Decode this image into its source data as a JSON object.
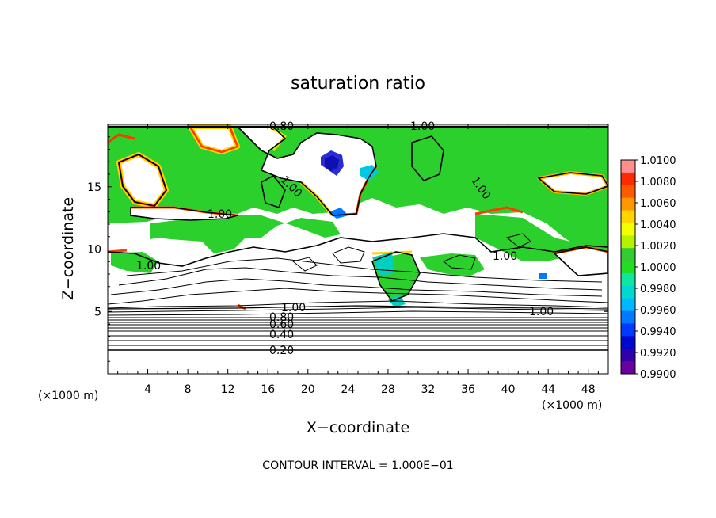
{
  "chart_data": {
    "type": "heatmap",
    "title": "saturation ratio",
    "xlabel": "X−coordinate",
    "ylabel": "Z−coordinate",
    "x_unit": "(×1000 m)",
    "z_unit": "(×1000 m)",
    "xlim": [
      0,
      50
    ],
    "ylim": [
      0,
      20
    ],
    "x_ticks": [
      4,
      8,
      12,
      16,
      20,
      24,
      28,
      32,
      36,
      40,
      44,
      48
    ],
    "y_ticks": [
      5,
      10,
      15
    ],
    "colorbar": {
      "ticks": [
        "1.0100",
        "1.0080",
        "1.0060",
        "1.0040",
        "1.0020",
        "1.0000",
        "0.9980",
        "0.9960",
        "0.9940",
        "0.9920",
        "0.9900"
      ],
      "colors": [
        "#ff8f8f",
        "#ff2a00",
        "#ff5a00",
        "#ff9800",
        "#ffd400",
        "#f2ff00",
        "#b6f200",
        "#33cc33",
        "#22dd22",
        "#11e6a0",
        "#00d8d0",
        "#00b8ff",
        "#0078ff",
        "#0038ff",
        "#0008d0",
        "#3000a8",
        "#6a00a0"
      ]
    },
    "contour_levels_shown": [
      {
        "label": "0.20",
        "z": 2.0
      },
      {
        "label": "0.40",
        "z": 3.3
      },
      {
        "label": "0.60",
        "z": 4.1
      },
      {
        "label": "0.80",
        "z": 4.6
      },
      {
        "label": "1.00",
        "x": 18.5,
        "z": 5.3
      },
      {
        "label": "1.00",
        "x": 43.5,
        "z": 5.0
      },
      {
        "label": "1.00",
        "x": 4,
        "z": 8.6
      },
      {
        "label": "1.00",
        "x": 11.5,
        "z": 12.9
      },
      {
        "label": "1.00",
        "x": 37.5,
        "z": 9.8
      },
      {
        "label": "1.00",
        "x": 18.2,
        "z": 15.5
      },
      {
        "label": "1.00",
        "x": 36.5,
        "z": 15.5
      },
      {
        "label": "1.00",
        "x": 30.5,
        "z": 19.7
      },
      {
        "label": "0.80",
        "x": 17.5,
        "z": 19.7
      }
    ],
    "contour_interval_text": "CONTOUR INTERVAL = 1.000E−01"
  }
}
